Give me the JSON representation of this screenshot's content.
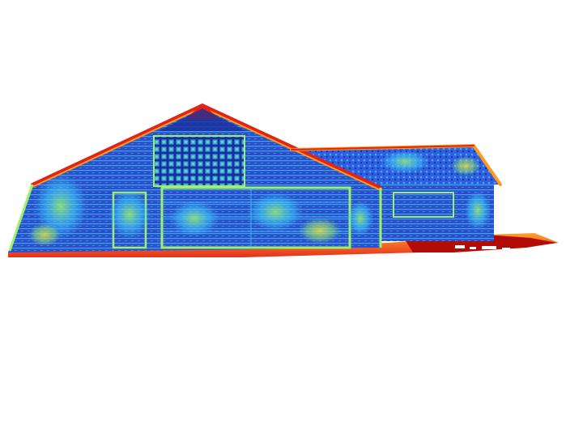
{
  "scene": {
    "subject": "house-pointcloud",
    "colormap": "jet",
    "background_color": "#ffffff",
    "palette": {
      "dark_blue": "#1a2f9e",
      "blue": "#2f5fe0",
      "cyan": "#3fd0ff",
      "green": "#9cf06a",
      "yellow": "#f6e83a",
      "orange": "#ff9a1e",
      "red": "#e32412",
      "dark_red": "#b10c06"
    }
  }
}
